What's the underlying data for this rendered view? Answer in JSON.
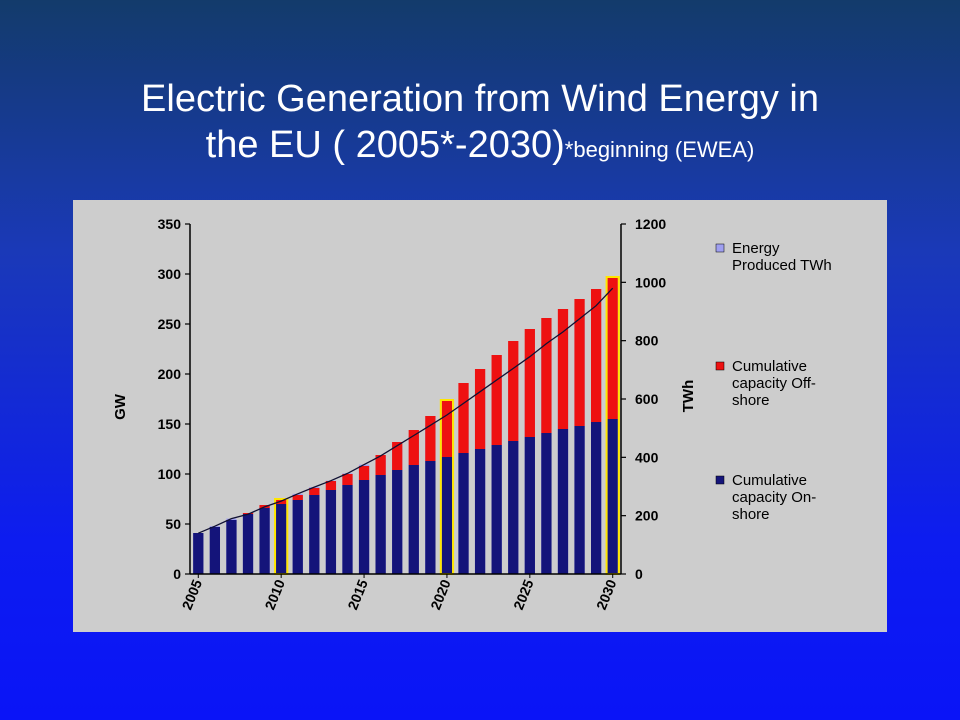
{
  "slide": {
    "title_line1": "Electric Generation from Wind Energy in",
    "title_line2": "the EU ( 2005*-2030)",
    "title_note": "*beginning (EWEA)"
  },
  "chart_data": {
    "type": "bar",
    "stacked": true,
    "x": [
      2005,
      2006,
      2007,
      2008,
      2009,
      2010,
      2011,
      2012,
      2013,
      2014,
      2015,
      2016,
      2017,
      2018,
      2019,
      2020,
      2021,
      2022,
      2023,
      2024,
      2025,
      2026,
      2027,
      2028,
      2029,
      2030
    ],
    "x_tick_labels": [
      "2005",
      "2010",
      "2015",
      "2020",
      "2025",
      "2030"
    ],
    "series": [
      {
        "name": "Cumulative capacity On-shore",
        "axis": "left",
        "color": "#14147a",
        "values": [
          41,
          47,
          54,
          60,
          66,
          70,
          74,
          79,
          84,
          89,
          94,
          99,
          104,
          109,
          113,
          117,
          121,
          125,
          129,
          133,
          137,
          141,
          145,
          148,
          152,
          155
        ]
      },
      {
        "name": "Cumulative capacity Off-shore",
        "axis": "left",
        "color": "#ee1111",
        "values": [
          0,
          0,
          0,
          1,
          3,
          4,
          5,
          7,
          9,
          11,
          14,
          20,
          28,
          35,
          45,
          56,
          70,
          80,
          90,
          100,
          108,
          115,
          120,
          127,
          133,
          141
        ]
      },
      {
        "name": "Energy Produced TWh",
        "axis": "right",
        "color": "#9f9ff0",
        "values": [
          140,
          164,
          190,
          205,
          230,
          250,
          275,
          298,
          320,
          345,
          375,
          405,
          440,
          475,
          510,
          545,
          585,
          625,
          665,
          705,
          745,
          790,
          830,
          875,
          920,
          980
        ]
      }
    ],
    "highlighted_x": [
      2010,
      2020,
      2030
    ],
    "trend_line": true,
    "ylabel": "GW",
    "ylim": [
      0,
      350
    ],
    "yticks": [
      0,
      50,
      100,
      150,
      200,
      250,
      300,
      350
    ],
    "y2label": "TWh",
    "y2lim": [
      0,
      1200
    ],
    "y2ticks": [
      0,
      200,
      400,
      600,
      800,
      1000,
      1200
    ],
    "legend": [
      {
        "label_line1": "Energy",
        "label_line2": "Produced TWh",
        "label_line3": "",
        "color": "#9f9ff0"
      },
      {
        "label_line1": "Cumulative",
        "label_line2": "capacity Off-",
        "label_line3": "shore",
        "color": "#ee1111"
      },
      {
        "label_line1": "Cumulative",
        "label_line2": "capacity On-",
        "label_line3": "shore",
        "color": "#14147a"
      }
    ],
    "legend_position": "right",
    "grid": false
  }
}
